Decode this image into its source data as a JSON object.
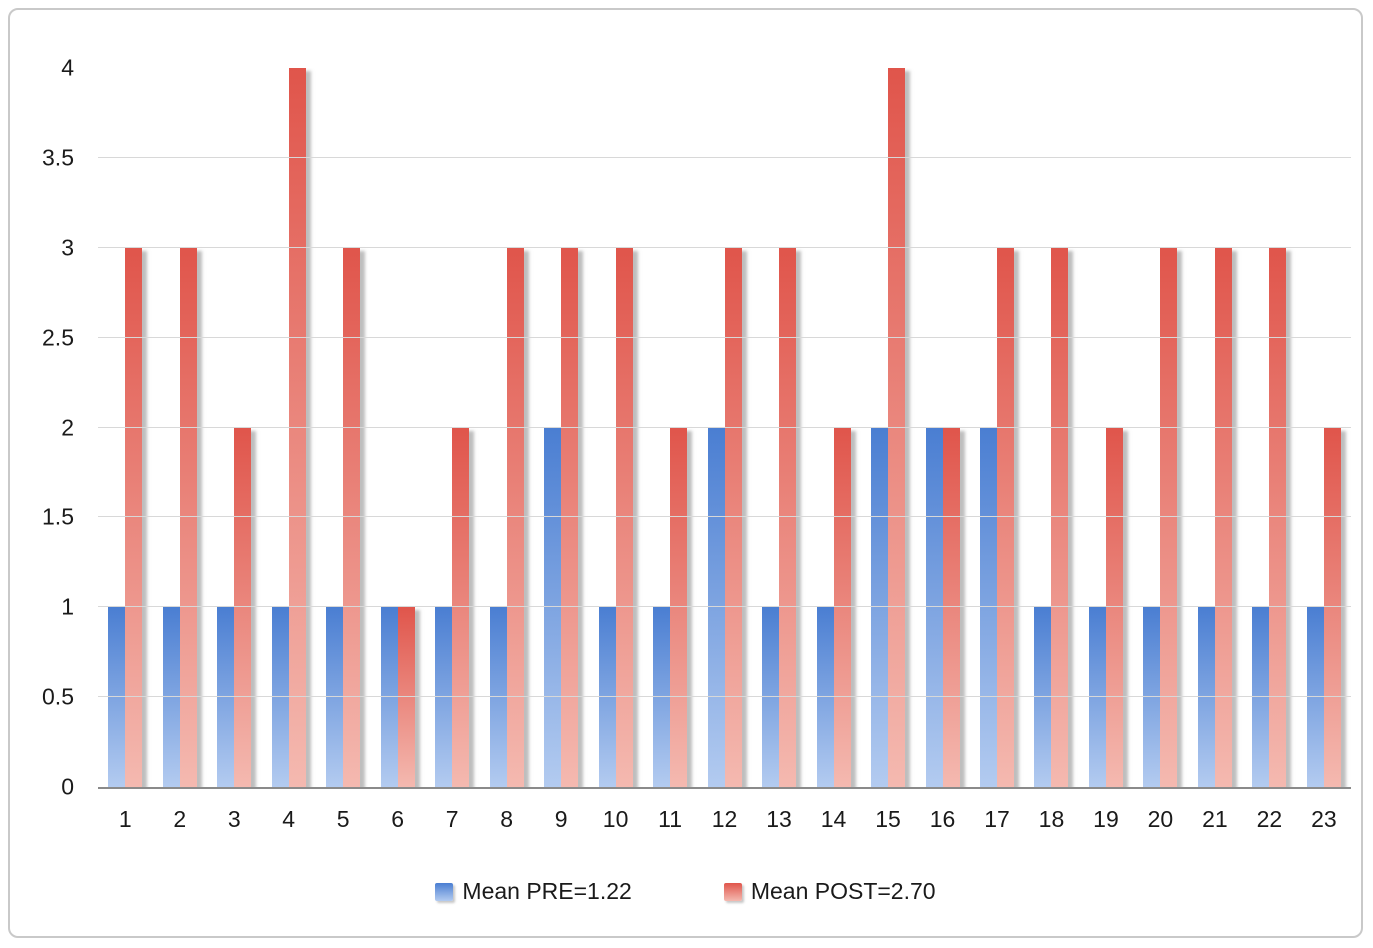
{
  "chart_data": {
    "type": "bar",
    "title": "",
    "xlabel": "",
    "ylabel": "",
    "categories": [
      "1",
      "2",
      "3",
      "4",
      "5",
      "6",
      "7",
      "8",
      "9",
      "10",
      "11",
      "12",
      "13",
      "14",
      "15",
      "16",
      "17",
      "18",
      "19",
      "20",
      "21",
      "22",
      "23"
    ],
    "series": [
      {
        "name": "Mean PRE=1.22",
        "values": [
          1,
          1,
          1,
          1,
          1,
          1,
          1,
          1,
          2,
          1,
          1,
          2,
          1,
          1,
          2,
          2,
          2,
          1,
          1,
          1,
          1,
          1,
          1
        ],
        "gradient_top": "#4a7ed2",
        "gradient_bottom": "#b3cbf0"
      },
      {
        "name": "Mean POST=2.70",
        "values": [
          3,
          3,
          2,
          4,
          3,
          1,
          2,
          3,
          3,
          3,
          2,
          3,
          3,
          2,
          4,
          2,
          3,
          3,
          2,
          3,
          3,
          3,
          2
        ],
        "gradient_top": "#e0554b",
        "gradient_bottom": "#f4b9b0"
      }
    ],
    "ylim": [
      0,
      4
    ],
    "yticks": [
      0,
      0.5,
      1,
      1.5,
      2,
      2.5,
      3,
      3.5,
      4
    ],
    "grid": true,
    "legend_position": "bottom",
    "colors": {
      "gridline": "#d8d8d8",
      "axis_line": "#8a8a8a",
      "text": "#1a1a1a",
      "frame_border": "#c9c9c9",
      "background": "#ffffff"
    }
  }
}
